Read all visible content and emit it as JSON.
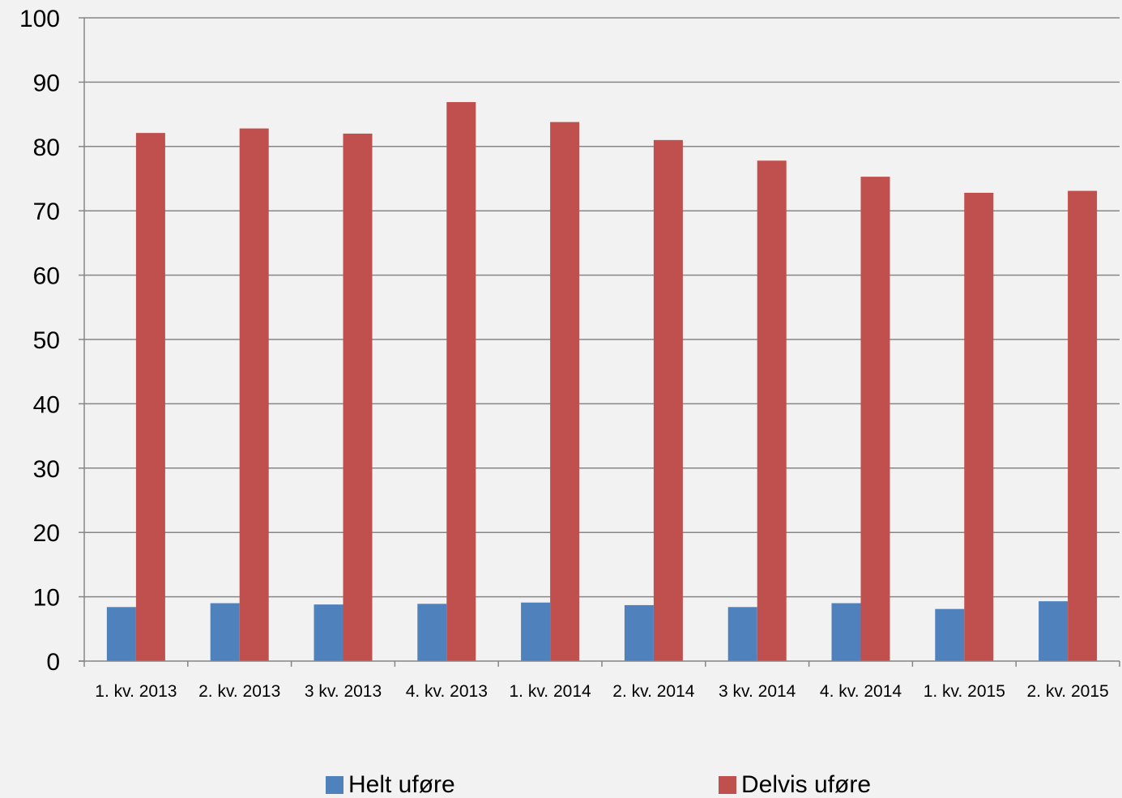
{
  "chart_data": {
    "type": "bar",
    "categories": [
      "1. kv. 2013",
      "2. kv. 2013",
      "3 kv. 2013",
      "4. kv. 2013",
      "1. kv. 2014",
      "2. kv. 2014",
      "3 kv. 2014",
      "4. kv. 2014",
      "1. kv. 2015",
      "2. kv. 2015"
    ],
    "series": [
      {
        "name": "Helt uføre",
        "color": "#4f81bd",
        "values": [
          8.4,
          9.0,
          8.8,
          8.9,
          9.1,
          8.7,
          8.4,
          9.0,
          8.1,
          9.3
        ]
      },
      {
        "name": "Delvis uføre",
        "color": "#c0504d",
        "values": [
          82.1,
          82.8,
          82.0,
          86.9,
          83.8,
          81.0,
          77.8,
          75.3,
          72.8,
          73.1
        ]
      }
    ],
    "ylim": [
      0,
      100
    ],
    "yticks": [
      "0",
      "10",
      "20",
      "30",
      "40",
      "50",
      "60",
      "70",
      "80",
      "90",
      "100"
    ],
    "grid": true,
    "legend_position": "bottom"
  }
}
